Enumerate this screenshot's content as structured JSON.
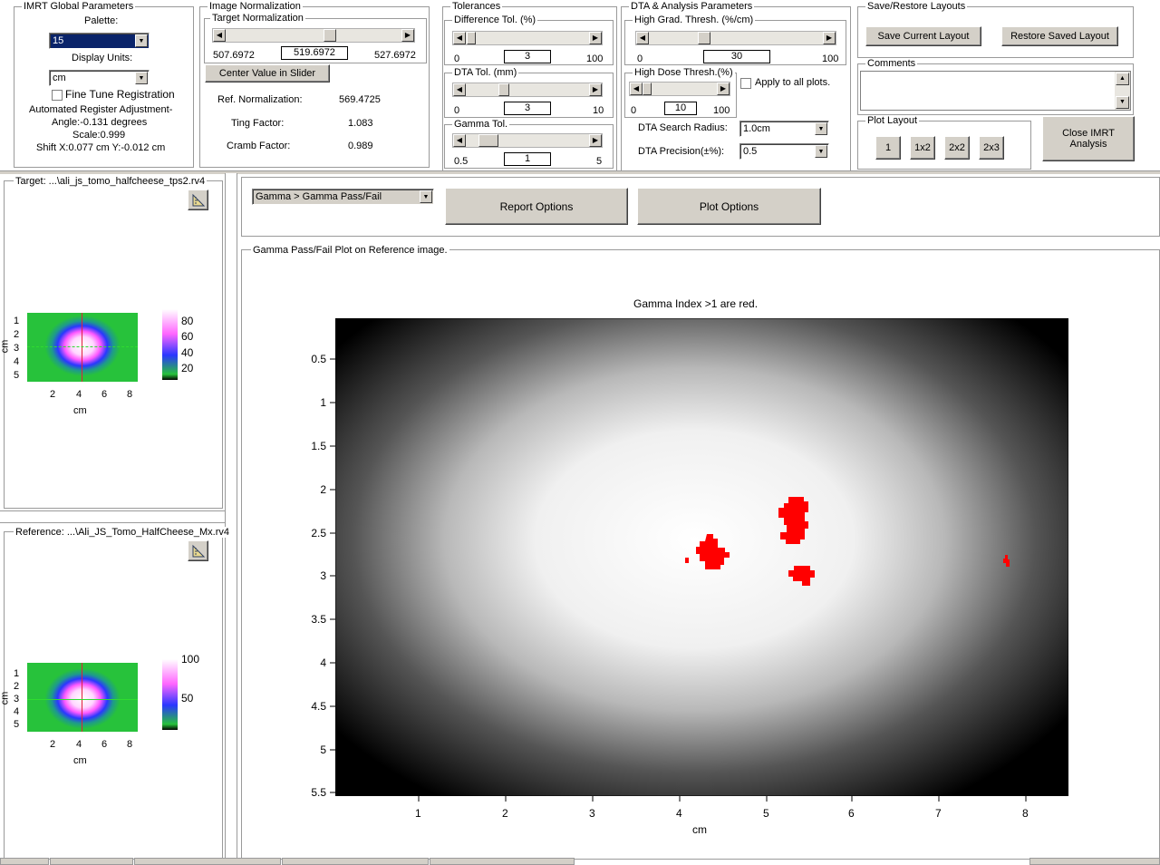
{
  "global": {
    "title": "IMRT Global Parameters",
    "palette_label": "Palette:",
    "palette_value": "15",
    "units_label": "Display Units:",
    "units_value": "cm",
    "fine_tune_label": "Fine Tune Registration",
    "auto_reg_label": "Automated Register Adjustment-",
    "angle": "Angle:-0.131 degrees",
    "scale": "Scale:0.999",
    "shift": "Shift X:0.077 cm Y:-0.012 cm"
  },
  "norm": {
    "title": "Image Normalization",
    "target_title": "Target Normalization",
    "min": "507.6972",
    "value": "519.6972",
    "max": "527.6972",
    "center_button": "Center Value in Slider",
    "ref_label": "Ref. Normalization:",
    "ref_value": "569.4725",
    "ting_label": "Ting Factor:",
    "ting_value": "1.083",
    "cramb_label": "Cramb Factor:",
    "cramb_value": "0.989"
  },
  "tol": {
    "title": "Tolerances",
    "diff_title": "Difference Tol. (%)",
    "diff_min": "0",
    "diff_value": "3",
    "diff_max": "100",
    "dta_title": "DTA Tol. (mm)",
    "dta_min": "0",
    "dta_value": "3",
    "dta_max": "10",
    "gamma_title": "Gamma Tol.",
    "gamma_min": "0.5",
    "gamma_value": "1",
    "gamma_max": "5"
  },
  "dta": {
    "title": "DTA & Analysis Parameters",
    "grad_title": "High Grad. Thresh. (%/cm)",
    "grad_min": "0",
    "grad_value": "30",
    "grad_max": "100",
    "dose_title": "High Dose Thresh.(%)",
    "dose_min": "0",
    "dose_value": "10",
    "dose_max": "100",
    "apply_label": "Apply to all plots.",
    "radius_label": "DTA Search Radius:",
    "radius_value": "1.0cm",
    "precision_label": "DTA Precision(±%):",
    "precision_value": "0.5"
  },
  "layouts": {
    "title": "Save/Restore Layouts",
    "save": "Save Current Layout",
    "restore": "Restore Saved Layout",
    "comments_title": "Comments",
    "plot_layout_title": "Plot Layout",
    "layout_buttons": [
      "1",
      "1x2",
      "2x2",
      "2x3"
    ],
    "close": "Close IMRT Analysis"
  },
  "target_panel": {
    "title": "Target: ...\\ali_js_tomo_halfcheese_tps2.rv4",
    "yticks": [
      "1",
      "2",
      "3",
      "4",
      "5"
    ],
    "xticks": [
      "2",
      "4",
      "6",
      "8"
    ],
    "xlabel": "cm",
    "ylabel": "cm",
    "cbar_ticks": [
      "80",
      "60",
      "40",
      "20"
    ]
  },
  "reference_panel": {
    "title": "Reference: ...\\Ali_JS_Tomo_HalfCheese_Mx.rv4",
    "yticks": [
      "1",
      "2",
      "3",
      "4",
      "5"
    ],
    "xticks": [
      "2",
      "4",
      "6",
      "8"
    ],
    "xlabel": "cm",
    "ylabel": "cm",
    "cbar_ticks": [
      "100",
      "50"
    ]
  },
  "main": {
    "analysis_select": "Gamma > Gamma Pass/Fail",
    "report_button": "Report Options",
    "plot_button": "Plot Options",
    "plot_group_title": "Gamma Pass/Fail Plot on Reference image.",
    "plot_title": "Gamma Index >1 are red.",
    "xlabel": "cm",
    "yticks": [
      "0.5",
      "1",
      "1.5",
      "2",
      "2.5",
      "3",
      "3.5",
      "4",
      "4.5",
      "5",
      "5.5"
    ],
    "xticks": [
      "1",
      "2",
      "3",
      "4",
      "5",
      "6",
      "7",
      "8"
    ]
  },
  "colors": {
    "fail": "#ff0000",
    "panel_bg": "#d4d0c8",
    "select_bg": "#0a246a"
  }
}
